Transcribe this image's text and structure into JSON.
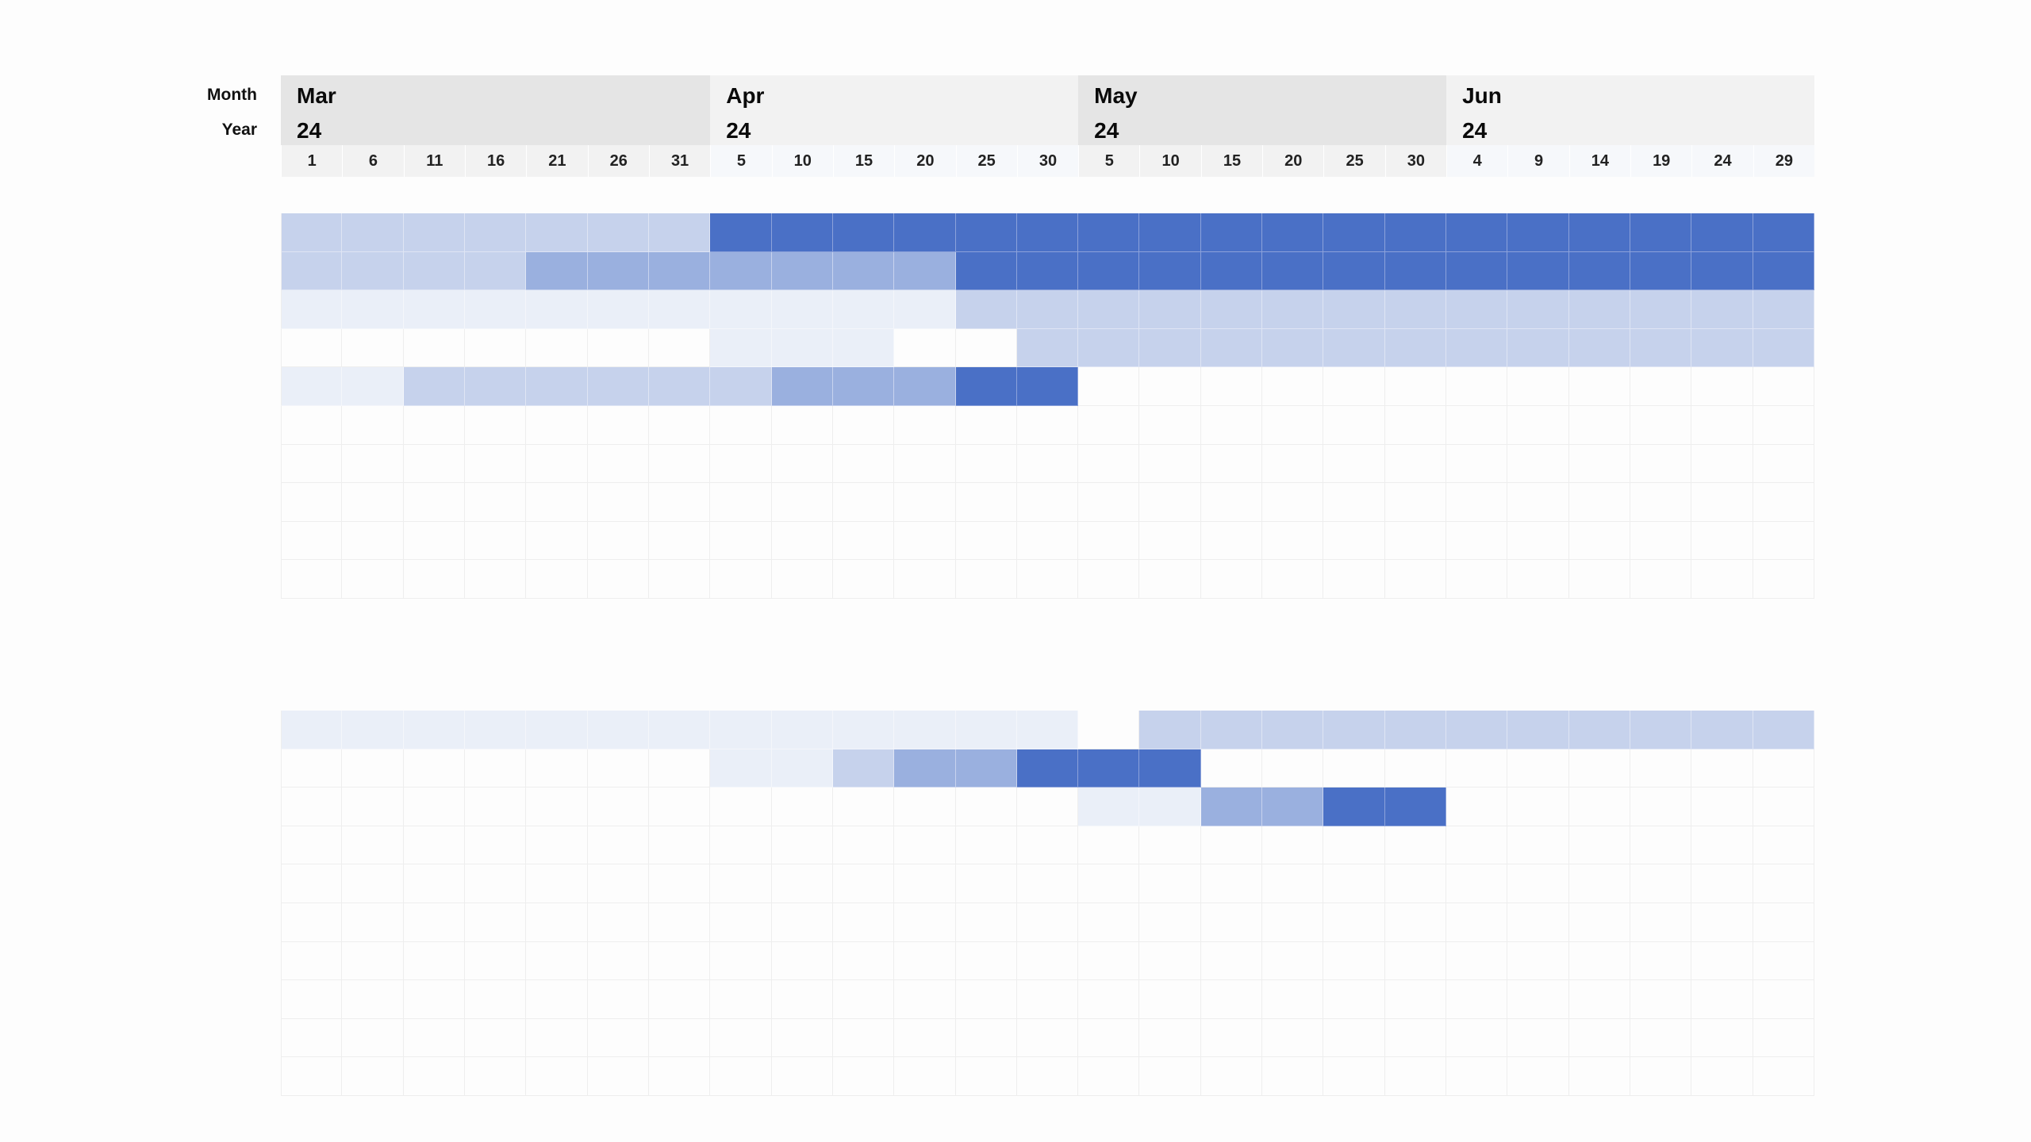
{
  "header": {
    "row_labels": {
      "month": "Month",
      "year": "Year"
    },
    "months": [
      {
        "name": "Mar",
        "year": "24",
        "days": [
          "1",
          "6",
          "11",
          "16",
          "21",
          "26",
          "31"
        ],
        "header_bg": "#e5e5e5",
        "day_bg": "#f2f2f2"
      },
      {
        "name": "Apr",
        "year": "24",
        "days": [
          "5",
          "10",
          "15",
          "20",
          "25",
          "30"
        ],
        "header_bg": "#f2f2f2",
        "day_bg": "#f6f8fb"
      },
      {
        "name": "May",
        "year": "24",
        "days": [
          "5",
          "10",
          "15",
          "20",
          "25",
          "30"
        ],
        "header_bg": "#e5e5e5",
        "day_bg": "#f2f2f2"
      },
      {
        "name": "Jun",
        "year": "24",
        "days": [
          "4",
          "9",
          "14",
          "19",
          "24",
          "29"
        ],
        "header_bg": "#f2f2f2",
        "day_bg": "#f6f8fb"
      }
    ]
  },
  "palette": {
    "0": "#fdfdfd",
    "1": "#eaeff8",
    "2": "#c6d2ec",
    "3": "#9ab0df",
    "4": "#4a70c6"
  },
  "chart_data": {
    "type": "heatmap",
    "title": "",
    "x_label": "Month / Year / Day",
    "categories": [
      "Mar 1",
      "Mar 6",
      "Mar 11",
      "Mar 16",
      "Mar 21",
      "Mar 26",
      "Mar 31",
      "Apr 5",
      "Apr 10",
      "Apr 15",
      "Apr 20",
      "Apr 25",
      "Apr 30",
      "May 5",
      "May 10",
      "May 15",
      "May 20",
      "May 25",
      "May 30",
      "Jun 4",
      "Jun 9",
      "Jun 14",
      "Jun 19",
      "Jun 24",
      "Jun 29"
    ],
    "value_scale": "0=empty, 1=lightest, 2=light, 3=medium, 4=dark",
    "blocks": [
      {
        "name": "block-1",
        "rows": [
          [
            2,
            2,
            2,
            2,
            2,
            2,
            2,
            4,
            4,
            4,
            4,
            4,
            4,
            4,
            4,
            4,
            4,
            4,
            4,
            4,
            4,
            4,
            4,
            4,
            4
          ],
          [
            2,
            2,
            2,
            2,
            3,
            3,
            3,
            3,
            3,
            3,
            3,
            4,
            4,
            4,
            4,
            4,
            4,
            4,
            4,
            4,
            4,
            4,
            4,
            4,
            4
          ],
          [
            1,
            1,
            1,
            1,
            1,
            1,
            1,
            1,
            1,
            1,
            1,
            2,
            2,
            2,
            2,
            2,
            2,
            2,
            2,
            2,
            2,
            2,
            2,
            2,
            2
          ],
          [
            0,
            0,
            0,
            0,
            0,
            0,
            0,
            1,
            1,
            1,
            0,
            0,
            2,
            2,
            2,
            2,
            2,
            2,
            2,
            2,
            2,
            2,
            2,
            2,
            2
          ],
          [
            1,
            1,
            2,
            2,
            2,
            2,
            2,
            2,
            3,
            3,
            3,
            4,
            4,
            0,
            0,
            0,
            0,
            0,
            0,
            0,
            0,
            0,
            0,
            0,
            0
          ],
          [
            0,
            0,
            0,
            0,
            0,
            0,
            0,
            0,
            0,
            0,
            0,
            0,
            0,
            0,
            0,
            0,
            0,
            0,
            0,
            0,
            0,
            0,
            0,
            0,
            0
          ],
          [
            0,
            0,
            0,
            0,
            0,
            0,
            0,
            0,
            0,
            0,
            0,
            0,
            0,
            0,
            0,
            0,
            0,
            0,
            0,
            0,
            0,
            0,
            0,
            0,
            0
          ],
          [
            0,
            0,
            0,
            0,
            0,
            0,
            0,
            0,
            0,
            0,
            0,
            0,
            0,
            0,
            0,
            0,
            0,
            0,
            0,
            0,
            0,
            0,
            0,
            0,
            0
          ],
          [
            0,
            0,
            0,
            0,
            0,
            0,
            0,
            0,
            0,
            0,
            0,
            0,
            0,
            0,
            0,
            0,
            0,
            0,
            0,
            0,
            0,
            0,
            0,
            0,
            0
          ],
          [
            0,
            0,
            0,
            0,
            0,
            0,
            0,
            0,
            0,
            0,
            0,
            0,
            0,
            0,
            0,
            0,
            0,
            0,
            0,
            0,
            0,
            0,
            0,
            0,
            0
          ]
        ]
      },
      {
        "name": "block-2",
        "rows": [
          [
            1,
            1,
            1,
            1,
            1,
            1,
            1,
            1,
            1,
            1,
            1,
            1,
            1,
            0,
            2,
            2,
            2,
            2,
            2,
            2,
            2,
            2,
            2,
            2,
            2
          ],
          [
            0,
            0,
            0,
            0,
            0,
            0,
            0,
            1,
            1,
            2,
            3,
            3,
            4,
            4,
            4,
            0,
            0,
            0,
            0,
            0,
            0,
            0,
            0,
            0,
            0
          ],
          [
            0,
            0,
            0,
            0,
            0,
            0,
            0,
            0,
            0,
            0,
            0,
            0,
            0,
            1,
            1,
            3,
            3,
            4,
            4,
            0,
            0,
            0,
            0,
            0,
            0
          ],
          [
            0,
            0,
            0,
            0,
            0,
            0,
            0,
            0,
            0,
            0,
            0,
            0,
            0,
            0,
            0,
            0,
            0,
            0,
            0,
            0,
            0,
            0,
            0,
            0,
            0
          ],
          [
            0,
            0,
            0,
            0,
            0,
            0,
            0,
            0,
            0,
            0,
            0,
            0,
            0,
            0,
            0,
            0,
            0,
            0,
            0,
            0,
            0,
            0,
            0,
            0,
            0
          ],
          [
            0,
            0,
            0,
            0,
            0,
            0,
            0,
            0,
            0,
            0,
            0,
            0,
            0,
            0,
            0,
            0,
            0,
            0,
            0,
            0,
            0,
            0,
            0,
            0,
            0
          ],
          [
            0,
            0,
            0,
            0,
            0,
            0,
            0,
            0,
            0,
            0,
            0,
            0,
            0,
            0,
            0,
            0,
            0,
            0,
            0,
            0,
            0,
            0,
            0,
            0,
            0
          ],
          [
            0,
            0,
            0,
            0,
            0,
            0,
            0,
            0,
            0,
            0,
            0,
            0,
            0,
            0,
            0,
            0,
            0,
            0,
            0,
            0,
            0,
            0,
            0,
            0,
            0
          ],
          [
            0,
            0,
            0,
            0,
            0,
            0,
            0,
            0,
            0,
            0,
            0,
            0,
            0,
            0,
            0,
            0,
            0,
            0,
            0,
            0,
            0,
            0,
            0,
            0,
            0
          ],
          [
            0,
            0,
            0,
            0,
            0,
            0,
            0,
            0,
            0,
            0,
            0,
            0,
            0,
            0,
            0,
            0,
            0,
            0,
            0,
            0,
            0,
            0,
            0,
            0,
            0
          ]
        ]
      }
    ]
  }
}
